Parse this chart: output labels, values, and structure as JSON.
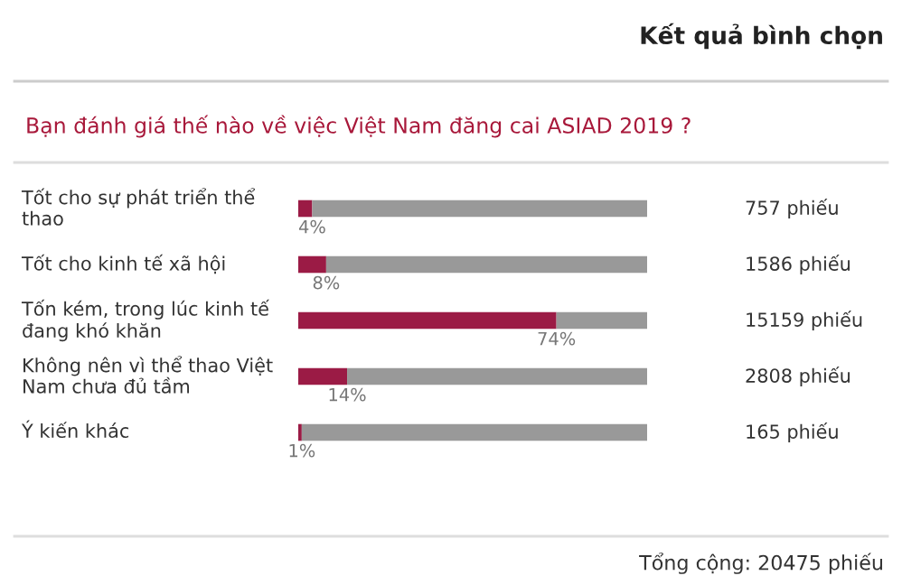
{
  "chart_data": {
    "type": "bar",
    "orientation": "horizontal",
    "stacked": true,
    "title": "Kết quả bình chọn",
    "subtitle": "Bạn đánh giá thế nào về việc Việt Nam đăng cai ASIAD 2019 ?",
    "categories": [
      "Tốt cho sự phát triển thể thao",
      "Tốt cho kinh tế xã hội",
      "Tốn kém, trong lúc kinh tế đang khó khăn",
      "Không nên vì thể thao Việt Nam chưa đủ tầm",
      "Ý kiến khác"
    ],
    "series": [
      {
        "color": "#9b1b45",
        "values": [
          4,
          8,
          74,
          14,
          1
        ],
        "value_labels": [
          "4%",
          "8%",
          "74%",
          "14%",
          "1%"
        ]
      },
      {
        "color": "#999999",
        "values": [
          96,
          92,
          26,
          86,
          99
        ]
      }
    ],
    "xlim": [
      0,
      100
    ],
    "annotations": [
      "757 phiếu",
      "1586 phiếu",
      "15159 phiếu",
      "2808 phiếu",
      "165 phiếu",
      "Tổng cộng: 20475 phiếu"
    ]
  }
}
